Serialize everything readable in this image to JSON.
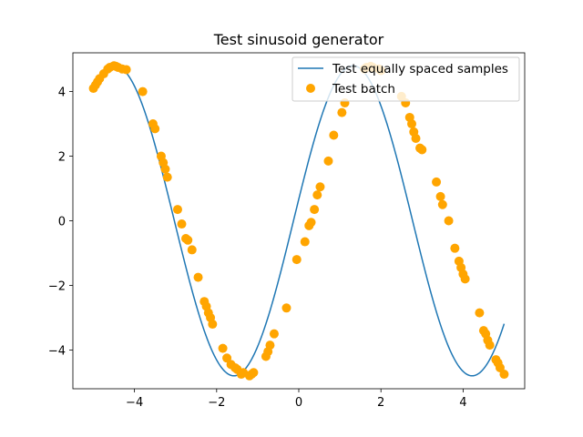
{
  "chart_data": {
    "type": "line+scatter",
    "title": "Test sinusoid generator",
    "xlabel": "",
    "ylabel": "",
    "xlim": [
      -5.5,
      5.5
    ],
    "ylim": [
      -5.2,
      5.2
    ],
    "xticks": [
      -4,
      -2,
      0,
      2,
      4
    ],
    "xtick_labels": [
      "−4",
      "−2",
      "0",
      "2",
      "4"
    ],
    "yticks": [
      -4,
      -2,
      0,
      2,
      4
    ],
    "ytick_labels": [
      "−4",
      "−2",
      "0",
      "2",
      "4"
    ],
    "grid": false,
    "legend_position": "top-right",
    "line_series": {
      "name": "Test equally spaced samples",
      "color": "#1f77b4",
      "amplitude": 4.8,
      "period": 5.8,
      "phase": 0.14,
      "x_range": [
        -5,
        5
      ]
    },
    "scatter_series": {
      "name": "Test batch",
      "color": "#ffa500",
      "x": [
        -5.0,
        -4.95,
        -4.9,
        -4.85,
        -4.75,
        -4.65,
        -4.6,
        -4.5,
        -4.45,
        -4.4,
        -4.3,
        -4.2,
        -3.8,
        -3.55,
        -3.5,
        -3.35,
        -3.3,
        -3.25,
        -3.2,
        -2.95,
        -2.85,
        -2.75,
        -2.7,
        -2.6,
        -2.45,
        -2.3,
        -2.25,
        -2.2,
        -2.15,
        -2.1,
        -1.85,
        -1.75,
        -1.65,
        -1.55,
        -1.5,
        -1.4,
        -1.35,
        -1.2,
        -1.15,
        -1.1,
        -0.8,
        -0.75,
        -0.7,
        -0.6,
        -0.3,
        -0.05,
        0.15,
        0.25,
        0.3,
        0.38,
        0.45,
        0.52,
        0.72,
        0.85,
        1.05,
        1.12,
        1.6,
        1.65,
        1.75,
        1.8,
        1.95,
        2.0,
        2.5,
        2.6,
        2.7,
        2.75,
        2.8,
        2.85,
        2.95,
        3.0,
        3.35,
        3.45,
        3.5,
        3.65,
        3.8,
        3.9,
        3.95,
        4.0,
        4.05,
        4.4,
        4.5,
        4.55,
        4.6,
        4.65,
        4.8,
        4.85,
        4.9,
        5.0
      ],
      "y": [
        4.1,
        4.2,
        4.3,
        4.4,
        4.55,
        4.7,
        4.75,
        4.8,
        4.78,
        4.75,
        4.7,
        4.68,
        4.0,
        3.0,
        2.85,
        2.0,
        1.8,
        1.6,
        1.35,
        0.35,
        -0.1,
        -0.55,
        -0.6,
        -0.9,
        -1.75,
        -2.5,
        -2.65,
        -2.85,
        -3.0,
        -3.2,
        -3.95,
        -4.25,
        -4.45,
        -4.55,
        -4.6,
        -4.75,
        -4.7,
        -4.8,
        -4.75,
        -4.7,
        -4.2,
        -4.05,
        -3.85,
        -3.5,
        -2.7,
        -1.2,
        -0.65,
        -0.15,
        -0.05,
        0.35,
        0.8,
        1.05,
        1.85,
        2.65,
        3.35,
        3.65,
        4.7,
        4.75,
        4.78,
        4.75,
        4.7,
        4.65,
        3.85,
        3.65,
        3.2,
        3.0,
        2.75,
        2.55,
        2.25,
        2.2,
        1.2,
        0.75,
        0.5,
        0.0,
        -0.85,
        -1.25,
        -1.45,
        -1.65,
        -1.8,
        -2.85,
        -3.4,
        -3.5,
        -3.7,
        -3.85,
        -4.3,
        -4.4,
        -4.55,
        -4.75
      ]
    }
  }
}
